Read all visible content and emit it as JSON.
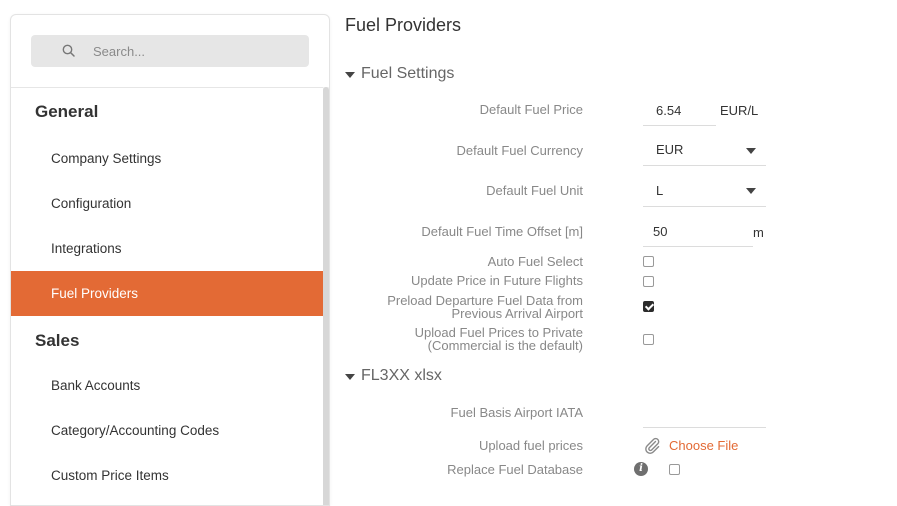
{
  "sidebar": {
    "search_placeholder": "Search...",
    "sections": [
      {
        "title": "General",
        "items": [
          {
            "label": "Company Settings"
          },
          {
            "label": "Configuration"
          },
          {
            "label": "Integrations"
          },
          {
            "label": "Fuel Providers",
            "active": true
          }
        ]
      },
      {
        "title": "Sales",
        "items": [
          {
            "label": "Bank Accounts"
          },
          {
            "label": "Category/Accounting Codes"
          },
          {
            "label": "Custom Price Items"
          }
        ]
      }
    ]
  },
  "main": {
    "title": "Fuel Providers",
    "fuel_settings": {
      "heading": "Fuel Settings",
      "default_fuel_price": {
        "label": "Default Fuel Price",
        "value": "6.54",
        "unit": "EUR/L"
      },
      "default_fuel_currency": {
        "label": "Default Fuel Currency",
        "value": "EUR"
      },
      "default_fuel_unit": {
        "label": "Default Fuel Unit",
        "value": "L"
      },
      "default_fuel_time_offset": {
        "label": "Default Fuel Time Offset [m]",
        "value": "50",
        "unit": "m"
      },
      "auto_fuel_select": {
        "label": "Auto Fuel Select",
        "checked": false
      },
      "update_price_future": {
        "label": "Update Price in Future Flights",
        "checked": false
      },
      "preload_departure": {
        "label_line1": "Preload Departure Fuel Data from",
        "label_line2": "Previous Arrival Airport",
        "checked": true
      },
      "upload_private": {
        "label_line1": "Upload Fuel Prices to Private",
        "label_line2": "(Commercial is the default)",
        "checked": false
      }
    },
    "xlsx": {
      "heading": "FL3XX xlsx",
      "fuel_basis_airport": {
        "label": "Fuel Basis Airport IATA",
        "value": ""
      },
      "upload_fuel_prices": {
        "label": "Upload fuel prices",
        "button": "Choose File"
      },
      "replace_fuel_db": {
        "label": "Replace Fuel Database",
        "info": "i",
        "checked": false
      }
    }
  },
  "colors": {
    "accent": "#e36a35"
  }
}
